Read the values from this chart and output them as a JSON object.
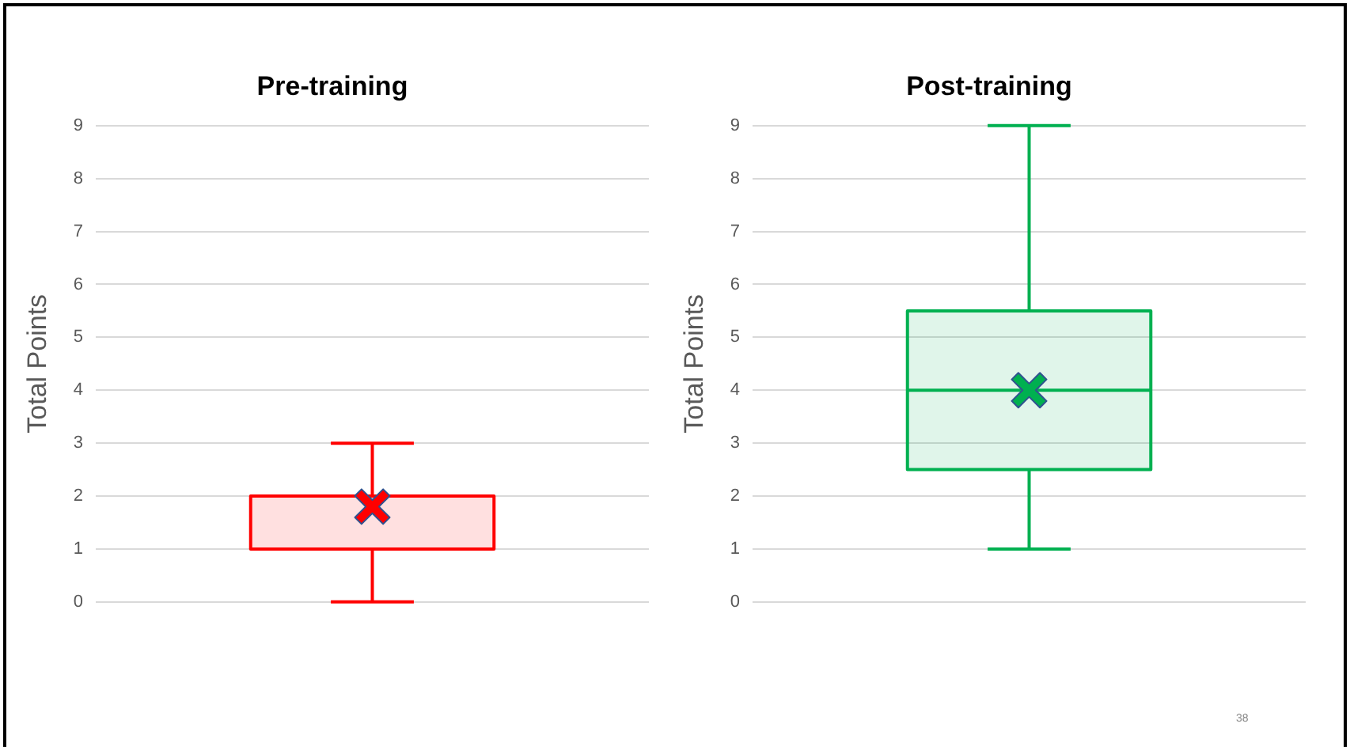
{
  "chart_data": [
    {
      "type": "box",
      "title": "Pre-training",
      "ylabel": "Total Points",
      "categories": [
        null
      ],
      "series": [
        {
          "color": "#ff0000",
          "boxes": [
            {
              "low": 0,
              "q1": 1,
              "median": 2,
              "q3": 2,
              "high": 3,
              "mean": 1.8
            }
          ]
        }
      ],
      "ylim": [
        0,
        9
      ],
      "yticks": [
        0,
        1,
        2,
        3,
        4,
        5,
        6,
        7,
        8,
        9
      ],
      "grid": "y",
      "tick_labels": "y",
      "marker": "cross"
    },
    {
      "type": "box",
      "title": "Post-training",
      "ylabel": "Total Points",
      "categories": [
        null
      ],
      "series": [
        {
          "color": "#00b050",
          "boxes": [
            {
              "low": 1,
              "q1": 2.5,
              "median": 4,
              "q3": 5.5,
              "high": 9,
              "mean": 4
            }
          ]
        }
      ],
      "ylim": [
        0,
        9
      ],
      "yticks": [
        0,
        1,
        2,
        3,
        4,
        5,
        6,
        7,
        8,
        9
      ],
      "grid": "y",
      "tick_labels": "y",
      "marker": "cross",
      "annotations": [
        "38"
      ]
    }
  ]
}
